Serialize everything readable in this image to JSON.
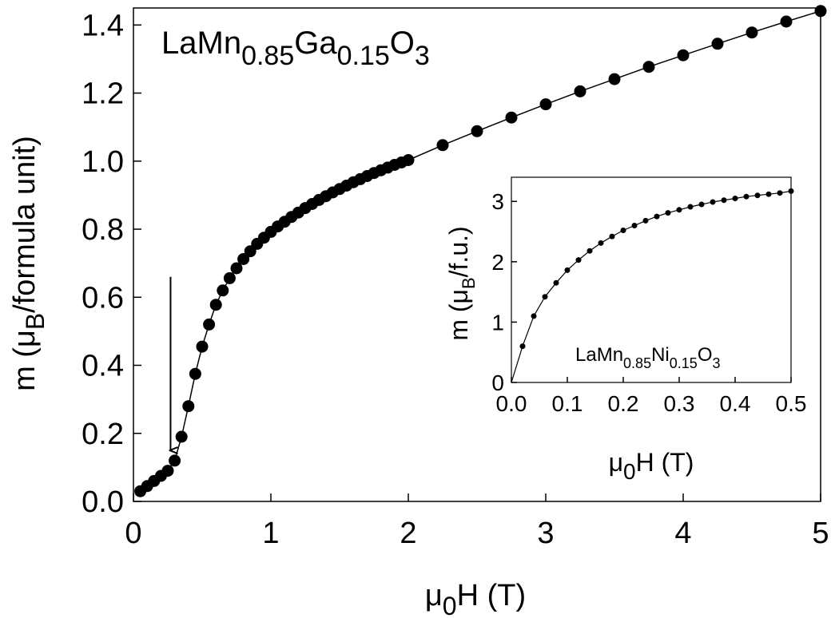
{
  "chart_data": [
    {
      "type": "line",
      "title": {
        "base": "LaMn",
        "sub1": "0.85",
        "mid": "Ga",
        "sub2": "0.15",
        "end": "O",
        "sub3": "3"
      },
      "xlabel": {
        "pre": "μ",
        "sub": "0",
        "post": "H (T)"
      },
      "ylabel": {
        "pre": "m (μ",
        "sub": "B",
        "post": "/formula unit)"
      },
      "xlim": [
        0,
        5
      ],
      "ylim": [
        0,
        1.45
      ],
      "xticks": [
        0,
        1,
        2,
        3,
        4,
        5
      ],
      "xtick_labels": [
        "0",
        "1",
        "2",
        "3",
        "4",
        "5"
      ],
      "yticks": [
        0.0,
        0.2,
        0.4,
        0.6,
        0.8,
        1.0,
        1.2,
        1.4
      ],
      "ytick_labels": [
        "0.0",
        "0.2",
        "0.4",
        "0.6",
        "0.8",
        "1.0",
        "1.2",
        "1.4"
      ],
      "grid": false,
      "markers": "filled-circle",
      "annotation": {
        "type": "arrow-down",
        "x": 0.27,
        "y_from": 0.66,
        "y_to": 0.15
      },
      "series": [
        {
          "x": [
            0.05,
            0.1,
            0.15,
            0.2,
            0.25,
            0.3,
            0.35,
            0.4,
            0.45,
            0.5,
            0.55,
            0.6,
            0.65,
            0.7,
            0.75,
            0.8,
            0.85,
            0.9,
            0.95,
            1.0,
            1.05,
            1.1,
            1.15,
            1.2,
            1.25,
            1.3,
            1.35,
            1.4,
            1.45,
            1.5,
            1.55,
            1.6,
            1.65,
            1.7,
            1.75,
            1.8,
            1.85,
            1.9,
            1.95,
            2.0,
            2.25,
            2.5,
            2.75,
            3.0,
            3.25,
            3.5,
            3.75,
            4.0,
            4.25,
            4.5,
            4.75,
            5.0
          ],
          "y": [
            0.03,
            0.045,
            0.06,
            0.075,
            0.09,
            0.12,
            0.19,
            0.28,
            0.375,
            0.455,
            0.52,
            0.578,
            0.62,
            0.656,
            0.685,
            0.712,
            0.735,
            0.757,
            0.775,
            0.792,
            0.808,
            0.822,
            0.836,
            0.849,
            0.862,
            0.874,
            0.886,
            0.897,
            0.908,
            0.918,
            0.928,
            0.938,
            0.947,
            0.956,
            0.965,
            0.973,
            0.981,
            0.989,
            0.996,
            1.003,
            1.047,
            1.088,
            1.128,
            1.167,
            1.205,
            1.241,
            1.277,
            1.311,
            1.345,
            1.378,
            1.41,
            1.441
          ]
        }
      ]
    },
    {
      "type": "line",
      "title": {
        "base": "LaMn",
        "sub1": "0.85",
        "mid": "Ni",
        "sub2": "0.15",
        "end": "O",
        "sub3": "3"
      },
      "xlabel": {
        "pre": "μ",
        "sub": "0",
        "post": "H (T)"
      },
      "ylabel": {
        "pre": "m (μ",
        "sub": "B",
        "post": "/f.u.)"
      },
      "xlim": [
        0,
        0.5
      ],
      "ylim": [
        0,
        3.4
      ],
      "xticks": [
        0.0,
        0.1,
        0.2,
        0.3,
        0.4,
        0.5
      ],
      "xtick_labels": [
        "0.0",
        "0.1",
        "0.2",
        "0.3",
        "0.4",
        "0.5"
      ],
      "yticks": [
        0,
        1,
        2,
        3
      ],
      "ytick_labels": [
        "0",
        "1",
        "2",
        "3"
      ],
      "grid": false,
      "markers": "small-filled-circle",
      "series": [
        {
          "x": [
            0.0,
            0.02,
            0.04,
            0.06,
            0.08,
            0.1,
            0.12,
            0.14,
            0.16,
            0.18,
            0.2,
            0.22,
            0.24,
            0.26,
            0.28,
            0.3,
            0.32,
            0.34,
            0.36,
            0.38,
            0.4,
            0.42,
            0.44,
            0.46,
            0.48,
            0.5
          ],
          "y": [
            0.0,
            0.6,
            1.1,
            1.42,
            1.65,
            1.86,
            2.03,
            2.18,
            2.31,
            2.42,
            2.52,
            2.6,
            2.68,
            2.75,
            2.81,
            2.86,
            2.91,
            2.95,
            2.99,
            3.02,
            3.05,
            3.08,
            3.1,
            3.12,
            3.14,
            3.17
          ],
          "markers_x": [
            0.02,
            0.04,
            0.06,
            0.08,
            0.1,
            0.12,
            0.14,
            0.16,
            0.18,
            0.2,
            0.22,
            0.24,
            0.26,
            0.28,
            0.3,
            0.32,
            0.34,
            0.36,
            0.38,
            0.4,
            0.42,
            0.44,
            0.46,
            0.48,
            0.5
          ]
        }
      ]
    }
  ]
}
